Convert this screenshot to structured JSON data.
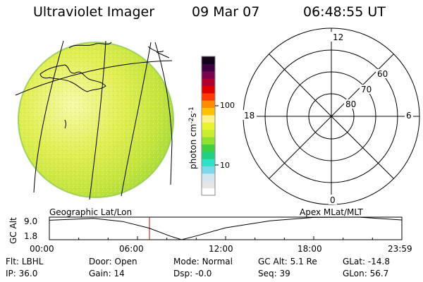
{
  "header": {
    "instrument": "Ultraviolet Imager",
    "date": "09 Mar 07",
    "time": "06:48:55 UT"
  },
  "colorbar": {
    "label": "photon cm",
    "exp1": "-2",
    "mid": "s",
    "exp2": "-1",
    "tick_100": "100",
    "tick_10": "10",
    "colors": [
      "#ffffff",
      "#e6e6e6",
      "#cfe8f0",
      "#7fd8e8",
      "#30e0c8",
      "#22d080",
      "#40d040",
      "#90e030",
      "#c8ec30",
      "#eaf42c",
      "#fff08a",
      "#ffc000",
      "#ff8c00",
      "#ff3a00",
      "#e00000",
      "#b00030",
      "#7a0050",
      "#3c0040",
      "#140018"
    ]
  },
  "polar": {
    "mlt_12": "12",
    "mlt_18": "18",
    "mlt_6": "6",
    "mlt_0": "0",
    "lat_60": "60",
    "lat_70": "70",
    "lat_80": "80"
  },
  "projection": {
    "left": "Geographic Lat/Lon",
    "right": "Apex  MLat/MLT"
  },
  "timeline": {
    "ylabel": "GC Alt",
    "y_top": "9.0",
    "y_bottom": "1.8",
    "ticks": [
      "00:00",
      "06:00",
      "12:00",
      "18:00",
      "23:59"
    ],
    "marker_time": "06:48:55",
    "marker_color": "#c00000",
    "altitude_curve": [
      {
        "t": 0.0,
        "alt": 8.0
      },
      {
        "t": 3.0,
        "alt": 8.6
      },
      {
        "t": 5.0,
        "alt": 7.6
      },
      {
        "t": 6.8,
        "alt": 5.5
      },
      {
        "t": 8.2,
        "alt": 3.0
      },
      {
        "t": 9.0,
        "alt": 1.8
      },
      {
        "t": 10.0,
        "alt": 3.0
      },
      {
        "t": 12.0,
        "alt": 5.6
      },
      {
        "t": 15.0,
        "alt": 7.8
      },
      {
        "t": 18.0,
        "alt": 8.9
      },
      {
        "t": 21.0,
        "alt": 9.0
      },
      {
        "t": 23.98,
        "alt": 8.1
      }
    ]
  },
  "status": {
    "filter_label": "Flt:",
    "filter": "LBHL",
    "door_label": "Door:",
    "door": "Open",
    "mode_label": "Mode:",
    "mode": "Normal",
    "gcalt_label": "GC Alt:",
    "gcalt": "5.1 Re",
    "glat_label": "GLat:",
    "glat": "-14.8",
    "ip_label": "IP:",
    "ip": "36.0",
    "gain_label": "Gain:",
    "gain": "14",
    "dsp_label": "Dsp:",
    "dsp": "-0.0",
    "seq_label": "Seq:",
    "seq": "39",
    "glon_label": "GLon:",
    "glon": "56.7"
  }
}
